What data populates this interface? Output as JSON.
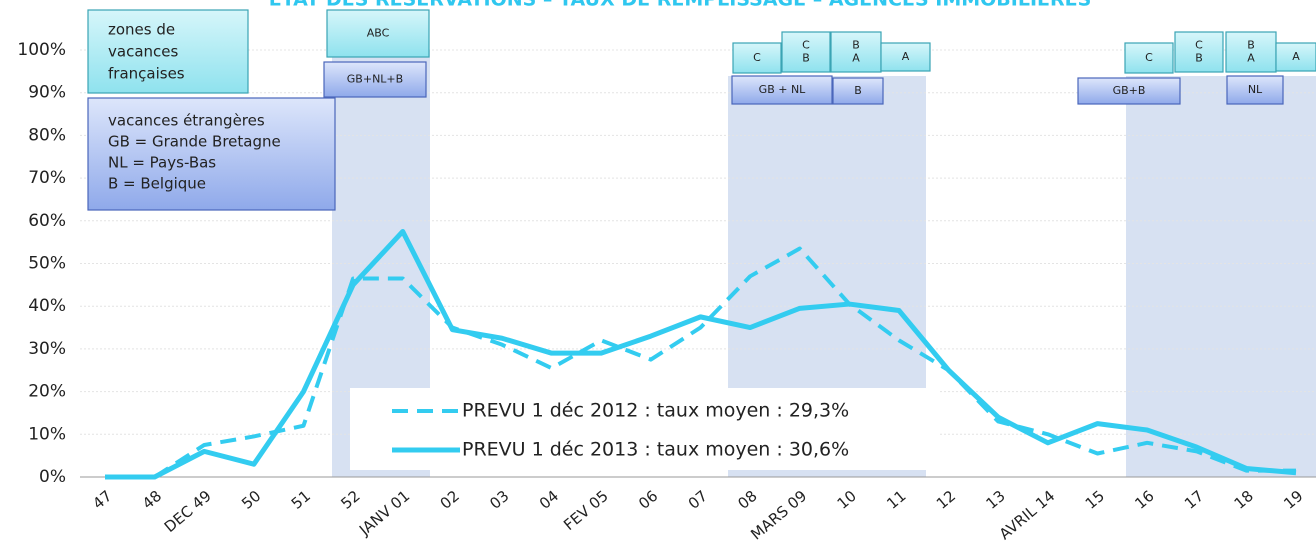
{
  "chart_data": {
    "type": "line",
    "title": "ETAT DES RESERVATIONS – TAUX DE REMPLISSAGE – AGENCES IMMOBILIERES",
    "categories": [
      "47",
      "48",
      "DEC 49",
      "50",
      "51",
      "52",
      "JANV 01",
      "02",
      "03",
      "04",
      "FEV 05",
      "06",
      "07",
      "08",
      "MARS 09",
      "10",
      "11",
      "12",
      "13",
      "AVRIL 14",
      "15",
      "16",
      "17",
      "18",
      "19"
    ],
    "series": [
      {
        "name": "PREVU 1 déc 2012 : taux moyen : 29,3%",
        "color": "#33ccf0",
        "dash": true,
        "values": [
          0,
          0,
          7.5,
          9.5,
          12,
          46.5,
          46.5,
          35,
          31,
          25.5,
          32,
          27.5,
          35,
          47,
          53.5,
          40.5,
          32,
          25,
          13,
          10,
          5.5,
          8,
          6,
          1.5,
          1.5
        ]
      },
      {
        "name": "PREVU 1 déc 2013 : taux moyen : 30,6%",
        "color": "#33ccf0",
        "dash": false,
        "values": [
          0,
          0,
          6,
          3,
          20,
          45,
          57.5,
          34.5,
          32.5,
          29,
          29,
          33,
          37.5,
          35,
          39.5,
          40.5,
          39,
          25,
          14,
          8,
          12.5,
          11,
          7,
          2,
          1
        ]
      }
    ],
    "ylim": [
      0,
      100
    ],
    "yticks": [
      {
        "value": 0,
        "label": "0%"
      },
      {
        "value": 10,
        "label": "10%"
      },
      {
        "value": 20,
        "label": "20%"
      },
      {
        "value": 30,
        "label": "30%"
      },
      {
        "value": 40,
        "label": "40%"
      },
      {
        "value": 50,
        "label": "50%"
      },
      {
        "value": 60,
        "label": "60%"
      },
      {
        "value": 70,
        "label": "70%"
      },
      {
        "value": 80,
        "label": "80%"
      },
      {
        "value": 90,
        "label": "90%"
      },
      {
        "value": 100,
        "label": "100%"
      }
    ],
    "grid": true,
    "french_zones": [
      "zones de",
      "vacances",
      "françaises"
    ],
    "foreign_holidays": [
      "vacances étrangères",
      "GB = Grande Bretagne",
      "NL = Pays-Bas",
      "B = Belgique"
    ],
    "tags": [
      [
        "ABC"
      ],
      [
        "GB+NL+B"
      ],
      [
        "C"
      ],
      [
        "C",
        "B"
      ],
      [
        "B",
        "A"
      ],
      [
        "A"
      ],
      [
        "GB + NL"
      ],
      [
        "B"
      ],
      [
        "C"
      ],
      [
        "C",
        "B"
      ],
      [
        "B",
        "A"
      ],
      [
        "A"
      ],
      [
        "GB+B"
      ],
      [
        "NL"
      ]
    ]
  }
}
